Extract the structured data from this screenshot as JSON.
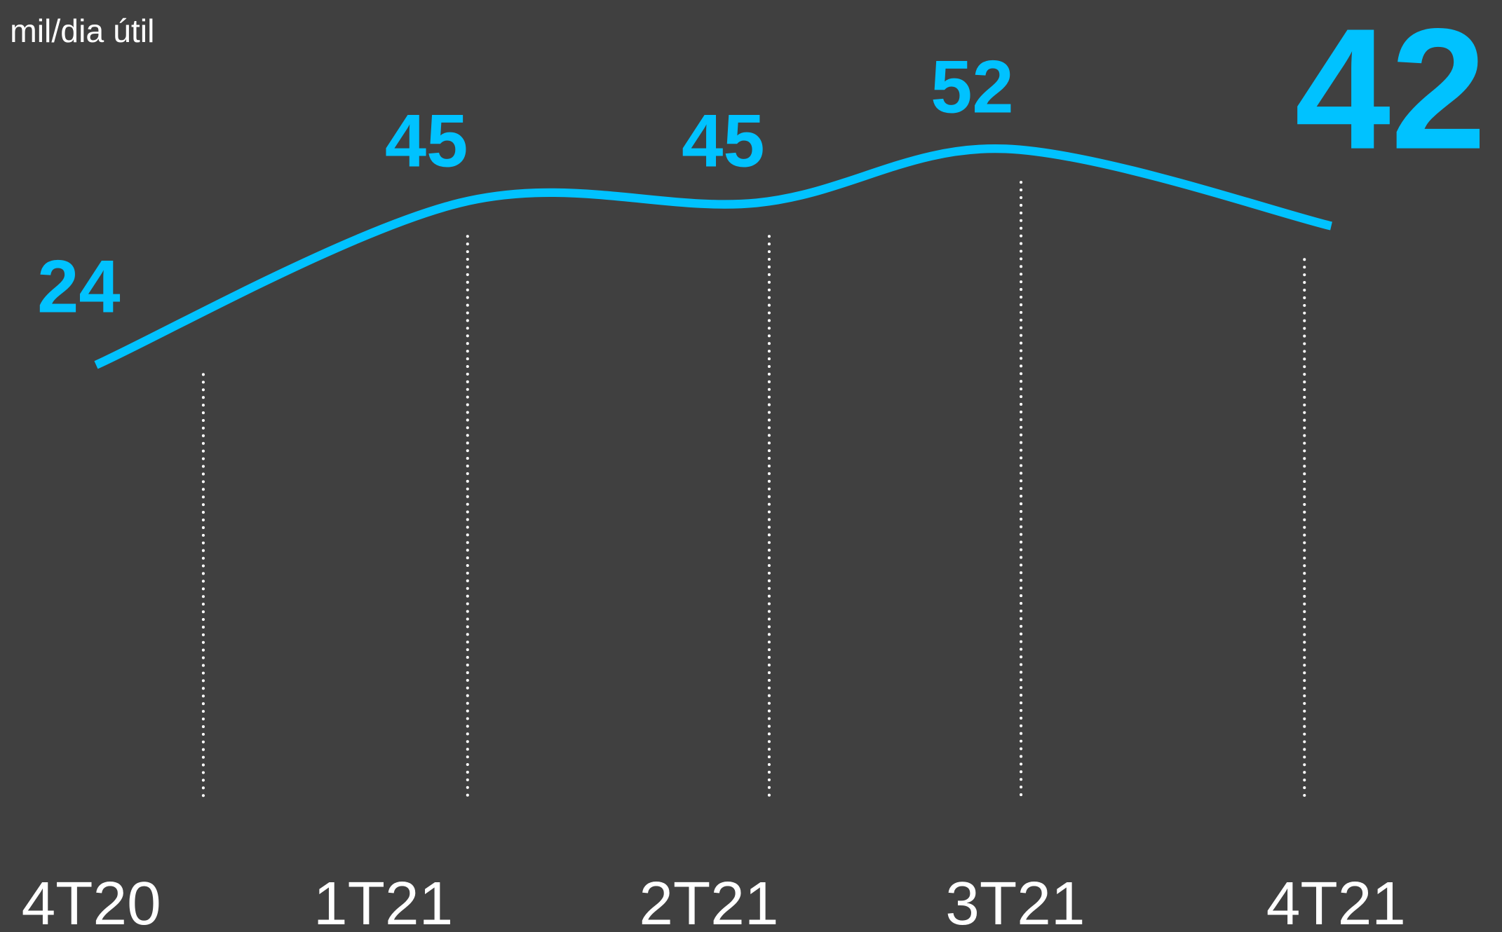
{
  "chart_data": {
    "type": "line",
    "y_label": "mil/dia útil",
    "categories": [
      "4T20",
      "1T21",
      "2T21",
      "3T21",
      "4T21"
    ],
    "values": [
      24,
      45,
      45,
      52,
      42
    ],
    "color": "#00c2ff",
    "ylim": [
      0,
      60
    ]
  }
}
